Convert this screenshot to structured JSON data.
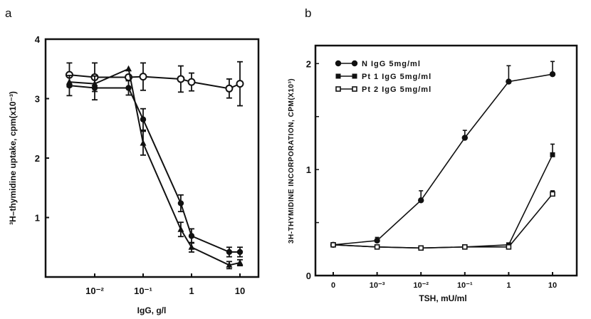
{
  "chart_data": [
    {
      "panel": "a",
      "type": "line",
      "xlabel": "IgG, g/l",
      "ylabel": "³H–thymidine uptake, cpm(x10⁻³)",
      "xscale": "log",
      "xlim": [
        0.0015,
        20
      ],
      "ylim": [
        0,
        4
      ],
      "x_ticks": [
        {
          "v": 0.01,
          "label": "10⁻²"
        },
        {
          "v": 0.1,
          "label": "10⁻¹"
        },
        {
          "v": 1,
          "label": "1"
        },
        {
          "v": 10,
          "label": "10"
        }
      ],
      "y_ticks": [
        {
          "v": 1,
          "label": "1"
        },
        {
          "v": 2,
          "label": "2"
        },
        {
          "v": 3,
          "label": "3"
        },
        {
          "v": 4,
          "label": "4"
        }
      ],
      "grid": false,
      "x": [
        0.003,
        0.01,
        0.05,
        0.1,
        0.6,
        1,
        6,
        10
      ],
      "series": [
        {
          "marker": "open-circle",
          "values": [
            3.4,
            3.36,
            3.36,
            3.37,
            3.33,
            3.28,
            3.17,
            3.25
          ],
          "err": [
            0.2,
            0.24,
            0,
            0.23,
            0.22,
            0.15,
            0.16,
            0.37
          ]
        },
        {
          "marker": "filled-circle",
          "values": [
            3.22,
            3.18,
            3.18,
            2.65,
            1.24,
            0.69,
            0.42,
            0.42
          ],
          "err": [
            0.17,
            0.2,
            0.12,
            0.18,
            0.14,
            0.12,
            0.08,
            0.08
          ]
        },
        {
          "marker": "filled-triangle",
          "values": [
            3.28,
            3.25,
            3.5,
            2.25,
            0.8,
            0.5,
            0.2,
            0.24
          ],
          "err": [
            0,
            0,
            0,
            0.2,
            0.12,
            0.08,
            0.06,
            0.05
          ]
        }
      ]
    },
    {
      "panel": "b",
      "type": "line",
      "xlabel": "TSH, mU/ml",
      "ylabel": "3H-THYMIDINE INCORPORATION, CPM(X10³)",
      "categories": [
        "0",
        "10⁻³",
        "10⁻²",
        "10⁻¹",
        "1",
        "10"
      ],
      "ylim": [
        0,
        2.17
      ],
      "y_ticks": [
        {
          "v": 0,
          "label": "0"
        },
        {
          "v": 0.5,
          "label": ""
        },
        {
          "v": 1,
          "label": "1"
        },
        {
          "v": 1.5,
          "label": ""
        },
        {
          "v": 2,
          "label": "2"
        }
      ],
      "grid": false,
      "legend": "top-left",
      "series": [
        {
          "name": "N IgG 5mg/ml",
          "marker": "filled-circle",
          "values": [
            0.29,
            0.33,
            0.71,
            1.3,
            1.83,
            1.9
          ],
          "err": [
            0,
            0.03,
            0.09,
            0.07,
            0.15,
            0.12
          ]
        },
        {
          "name": "Pt 1 IgG 5mg/ml",
          "marker": "filled-square",
          "values": [
            0.29,
            0.27,
            0.26,
            0.27,
            0.29,
            1.14
          ],
          "err": [
            0,
            0,
            0,
            0,
            0,
            0.1
          ]
        },
        {
          "name": "Pt 2 IgG 5mg/ml",
          "marker": "open-square",
          "values": [
            0.29,
            0.27,
            0.26,
            0.27,
            0.27,
            0.77
          ],
          "err": [
            0,
            0,
            0,
            0,
            0,
            0.03
          ]
        }
      ]
    }
  ]
}
